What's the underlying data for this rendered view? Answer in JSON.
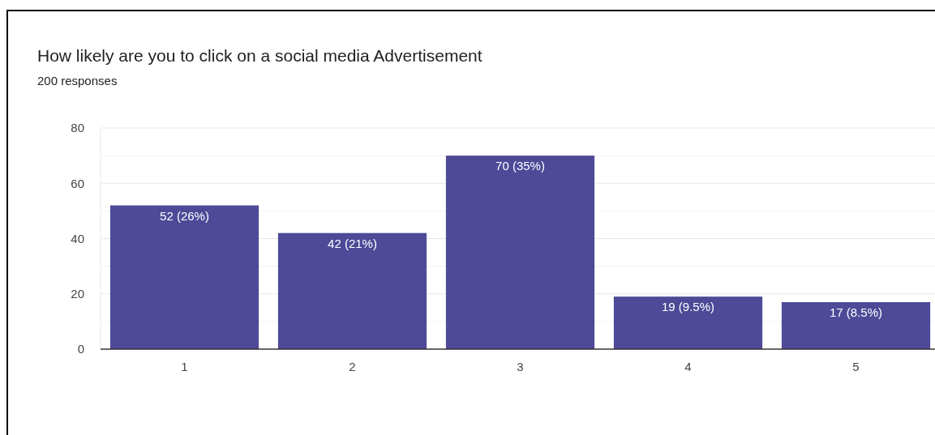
{
  "chart_data": {
    "type": "bar",
    "title": "How likely are you to click on a social media Advertisement",
    "subtitle": "200 responses",
    "categories": [
      "1",
      "2",
      "3",
      "4",
      "5"
    ],
    "values": [
      52,
      42,
      70,
      19,
      17
    ],
    "value_labels": [
      "52 (26%)",
      "42 (21%)",
      "70 (35%)",
      "19 (9.5%)",
      "17 (8.5%)"
    ],
    "color": "#4e4a98",
    "ylim": [
      0,
      80
    ],
    "yticks": [
      0,
      {
        "value": 10,
        "label": null
      },
      20,
      {
        "value": 30,
        "label": null
      },
      40,
      {
        "value": 50,
        "label": null
      },
      60,
      {
        "value": 70,
        "label": null
      },
      80
    ],
    "grid": true
  }
}
